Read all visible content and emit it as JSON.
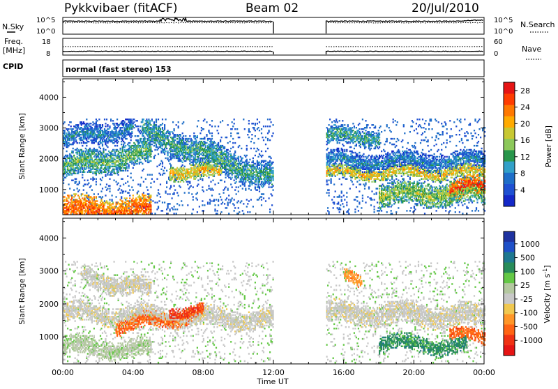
{
  "header": {
    "title": "Pykkvibaer (fitACF)",
    "beam": "Beam 02",
    "date": "20/Jul/2010"
  },
  "noise_panel": {
    "left_label": "N.Sky",
    "right_label": "N.Search",
    "left_ticks": [
      "10^5",
      "10^0"
    ],
    "right_ticks": [
      "10^5",
      "10^0"
    ]
  },
  "freq_panel": {
    "left_label_1": "Freq.",
    "left_label_2": "[MHz]",
    "right_label": "Nave",
    "left_ticks": [
      "18",
      "8"
    ],
    "right_ticks": [
      "60",
      "0"
    ]
  },
  "cpid": {
    "label": "CPID",
    "value": "normal (fast stereo) 153"
  },
  "x_axis": {
    "label": "Time UT",
    "ticks": [
      "00:00",
      "04:00",
      "08:00",
      "12:00",
      "16:00",
      "20:00",
      "00:00"
    ]
  },
  "colors": {
    "power": [
      "#1428c8",
      "#1e50d2",
      "#1e6ec8",
      "#32a0c8",
      "#28964b",
      "#8cc85a",
      "#c8c832",
      "#ffaa00",
      "#ff7800",
      "#ff3c00",
      "#e61414"
    ],
    "velocity": [
      "#1e32a0",
      "#1e50c8",
      "#1e7890",
      "#288c5a",
      "#64c846",
      "#b4c8a0",
      "#c8c8c8",
      "#f0c850",
      "#ff9628",
      "#ff6414",
      "#f03214",
      "#e61414"
    ]
  },
  "chart_data": [
    {
      "type": "heatmap",
      "title": "Power",
      "ylabel": "Slant Range [km]",
      "xlabel": "Time UT",
      "x_ticks": [
        "00:00",
        "04:00",
        "08:00",
        "12:00",
        "16:00",
        "20:00",
        "00:00"
      ],
      "y_ticks": [
        1000,
        2000,
        3000,
        4000
      ],
      "ylim": [
        180,
        4600
      ],
      "colorbar_label": "Power [dB]",
      "colorbar_ticks": [
        4,
        8,
        12,
        16,
        20,
        24,
        28
      ],
      "colorbar_range": [
        0,
        30
      ],
      "data_gap": [
        "12:00",
        "15:00"
      ]
    },
    {
      "type": "heatmap",
      "title": "Velocity",
      "ylabel": "Slant Range [km]",
      "xlabel": "Time UT",
      "x_ticks": [
        "00:00",
        "04:00",
        "08:00",
        "12:00",
        "16:00",
        "20:00",
        "00:00"
      ],
      "y_ticks": [
        1000,
        2000,
        3000,
        4000
      ],
      "ylim": [
        180,
        4600
      ],
      "colorbar_label": "Velocity [m s^-1]",
      "colorbar_ticks": [
        1000,
        500,
        100,
        25,
        -25,
        -100,
        -500,
        -1000
      ],
      "data_gap": [
        "12:00",
        "15:00"
      ]
    }
  ]
}
